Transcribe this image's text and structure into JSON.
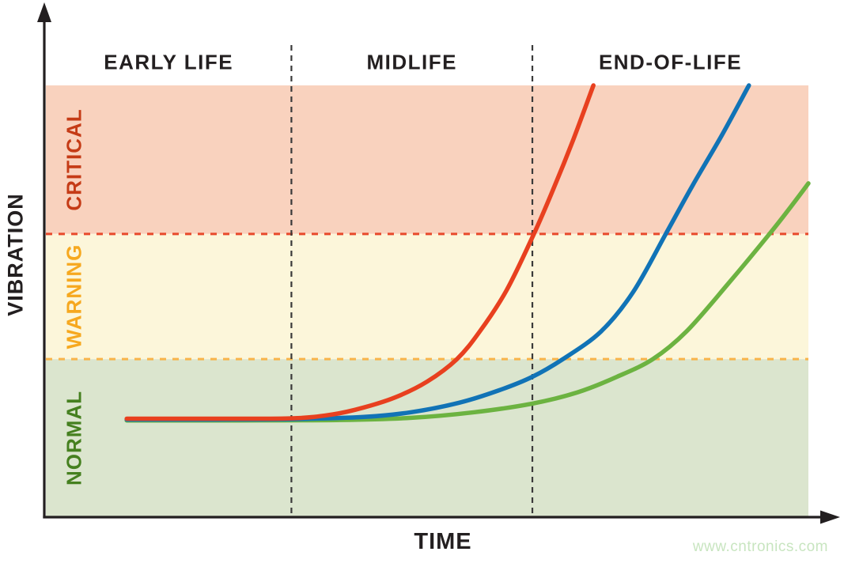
{
  "chart_data": {
    "type": "line",
    "title": "",
    "xlabel": "TIME",
    "ylabel": "VIBRATION",
    "x_range": [
      0,
      1
    ],
    "y_range": [
      0,
      1
    ],
    "grid": false,
    "legend": "none",
    "text_color": "#231f20",
    "axis_color": "#231f20",
    "divider_color": "#3a3a3a",
    "phases": [
      {
        "label": "EARLY LIFE",
        "t_start": 0,
        "t_end": 0.322
      },
      {
        "label": "MIDLIFE",
        "t_start": 0.322,
        "t_end": 0.638
      },
      {
        "label": "END-OF-LIFE",
        "t_start": 0.638,
        "t_end": 1
      }
    ],
    "zones": [
      {
        "label": "CRITICAL",
        "v_start": 0.656,
        "v_end": 1,
        "fill": "#f9d2be",
        "label_color": "#c53b16",
        "lower_boundary_color": "#e84a2b"
      },
      {
        "label": "WARNING",
        "v_start": 0.366,
        "v_end": 0.656,
        "fill": "#fcf6da",
        "label_color": "#f6a81f",
        "lower_boundary_color": "#f8b44a"
      },
      {
        "label": "NORMAL",
        "v_start": 0,
        "v_end": 0.366,
        "fill": "#dbe5ce",
        "label_color": "#45801f",
        "lower_boundary_color": null
      }
    ],
    "series": [
      {
        "name": "green",
        "color": "#6cb341",
        "points": [
          [
            0.106,
            0.224
          ],
          [
            0.25,
            0.224
          ],
          [
            0.386,
            0.225
          ],
          [
            0.479,
            0.23
          ],
          [
            0.562,
            0.243
          ],
          [
            0.638,
            0.263
          ],
          [
            0.697,
            0.289
          ],
          [
            0.749,
            0.325
          ],
          [
            0.796,
            0.366
          ],
          [
            0.84,
            0.43
          ],
          [
            0.894,
            0.539
          ],
          [
            0.949,
            0.656
          ],
          [
            0.977,
            0.719
          ],
          [
            1.0,
            0.773
          ]
        ]
      },
      {
        "name": "blue",
        "color": "#1173b6",
        "points": [
          [
            0.106,
            0.226
          ],
          [
            0.22,
            0.226
          ],
          [
            0.324,
            0.227
          ],
          [
            0.417,
            0.232
          ],
          [
            0.479,
            0.243
          ],
          [
            0.542,
            0.265
          ],
          [
            0.593,
            0.293
          ],
          [
            0.638,
            0.325
          ],
          [
            0.678,
            0.366
          ],
          [
            0.728,
            0.43
          ],
          [
            0.77,
            0.521
          ],
          [
            0.813,
            0.656
          ],
          [
            0.848,
            0.768
          ],
          [
            0.886,
            0.883
          ],
          [
            0.922,
            1.0
          ]
        ]
      },
      {
        "name": "red",
        "color": "#e8401f",
        "points": [
          [
            0.106,
            0.228
          ],
          [
            0.22,
            0.228
          ],
          [
            0.324,
            0.229
          ],
          [
            0.376,
            0.238
          ],
          [
            0.417,
            0.254
          ],
          [
            0.459,
            0.278
          ],
          [
            0.5,
            0.314
          ],
          [
            0.539,
            0.366
          ],
          [
            0.569,
            0.43
          ],
          [
            0.604,
            0.525
          ],
          [
            0.64,
            0.656
          ],
          [
            0.666,
            0.762
          ],
          [
            0.692,
            0.876
          ],
          [
            0.718,
            1.0
          ]
        ]
      }
    ]
  },
  "watermark": {
    "text": "www.cntronics.com",
    "color": "#c8e5c0"
  }
}
